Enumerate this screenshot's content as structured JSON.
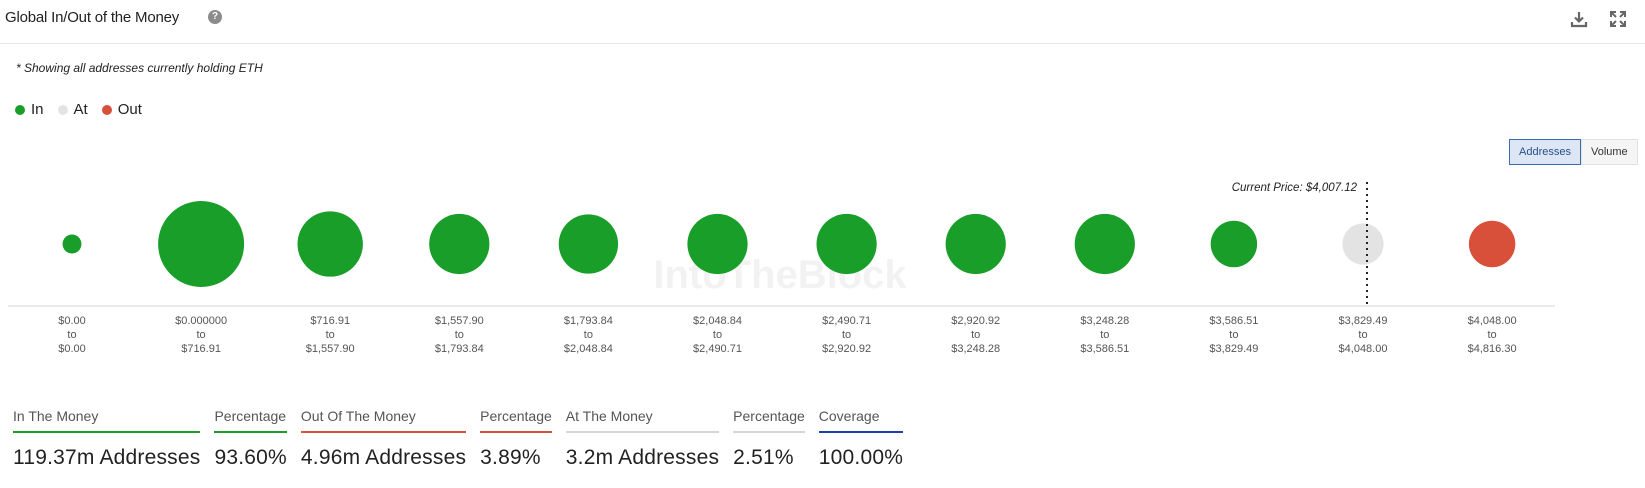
{
  "header": {
    "title": "Global In/Out of the Money",
    "help_icon": "question-icon",
    "download_icon": "download-icon",
    "expand_icon": "expand-icon"
  },
  "note": "* Showing all addresses currently holding ETH",
  "legend": [
    {
      "label": "In",
      "color": "#1a9e2a"
    },
    {
      "label": "At",
      "color": "#e3e3e3"
    },
    {
      "label": "Out",
      "color": "#d9503a"
    }
  ],
  "toggle": {
    "addresses": "Addresses",
    "volume": "Volume",
    "active": "Addresses"
  },
  "watermark": "IntoTheBlock",
  "chart_data": {
    "type": "bubble",
    "current_price_label": "Current Price: $4,007.12",
    "current_price_bucket_index": 10,
    "colors": {
      "in": "#1a9e2a",
      "at": "#e3e3e3",
      "out": "#d9503a"
    },
    "buckets": [
      {
        "from": "$0.00",
        "to": "$0.00",
        "status": "in",
        "relative_size": 0.22
      },
      {
        "from": "$0.000000",
        "to": "$716.91",
        "status": "in",
        "relative_size": 1.0
      },
      {
        "from": "$716.91",
        "to": "$1,557.90",
        "status": "in",
        "relative_size": 0.76
      },
      {
        "from": "$1,557.90",
        "to": "$1,793.84",
        "status": "in",
        "relative_size": 0.7
      },
      {
        "from": "$1,793.84",
        "to": "$2,048.84",
        "status": "in",
        "relative_size": 0.69
      },
      {
        "from": "$2,048.84",
        "to": "$2,490.71",
        "status": "in",
        "relative_size": 0.7
      },
      {
        "from": "$2,490.71",
        "to": "$2,920.92",
        "status": "in",
        "relative_size": 0.7
      },
      {
        "from": "$2,920.92",
        "to": "$3,248.28",
        "status": "in",
        "relative_size": 0.7
      },
      {
        "from": "$3,248.28",
        "to": "$3,586.51",
        "status": "in",
        "relative_size": 0.7
      },
      {
        "from": "$3,586.51",
        "to": "$3,829.49",
        "status": "in",
        "relative_size": 0.54
      },
      {
        "from": "$3,829.49",
        "to": "$4,048.00",
        "status": "at",
        "relative_size": 0.48
      },
      {
        "from": "$4,048.00",
        "to": "$4,816.30",
        "status": "out",
        "relative_size": 0.54
      }
    ]
  },
  "stats": [
    {
      "label": "In The Money",
      "value": "119.37m Addresses",
      "color": "#1a9e2a"
    },
    {
      "label": "Percentage",
      "value": "93.60%",
      "color": "#1a9e2a"
    },
    {
      "label": "Out Of The Money",
      "value": "4.96m Addresses",
      "color": "#d9503a"
    },
    {
      "label": "Percentage",
      "value": "3.89%",
      "color": "#d9503a"
    },
    {
      "label": "At The Money",
      "value": "3.2m Addresses",
      "color": "#d6d6d6"
    },
    {
      "label": "Percentage",
      "value": "2.51%",
      "color": "#d6d6d6"
    },
    {
      "label": "Coverage",
      "value": "100.00%",
      "color": "#1f3fb0"
    }
  ]
}
